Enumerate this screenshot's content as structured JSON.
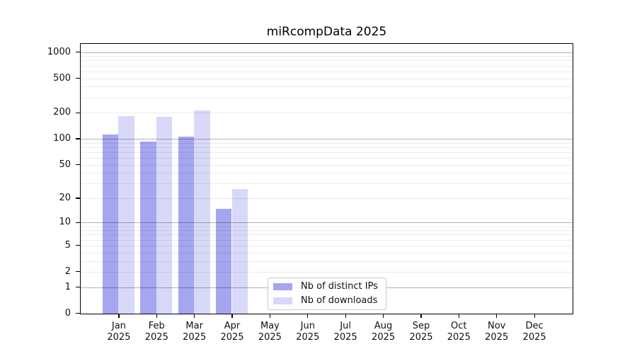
{
  "colors": {
    "series": [
      "#a5a5f0",
      "#d8d8f8"
    ],
    "grid_major": "rgba(0,0,0,0.30)",
    "grid_minor": "rgba(0,0,0,0.08)",
    "axis": "#000000"
  },
  "chart_data": {
    "type": "bar",
    "title": "miRcompData 2025",
    "categories": [
      "Jan 2025",
      "Feb 2025",
      "Mar 2025",
      "Apr 2025",
      "May 2025",
      "Jun 2025",
      "Jul 2025",
      "Aug 2025",
      "Sep 2025",
      "Oct 2025",
      "Nov 2025",
      "Dec 2025"
    ],
    "series": [
      {
        "name": "Nb of distinct IPs",
        "values": [
          113,
          94,
          107,
          15,
          0,
          0,
          0,
          0,
          0,
          0,
          0,
          0
        ]
      },
      {
        "name": "Nb of downloads",
        "values": [
          185,
          180,
          213,
          26,
          0,
          0,
          0,
          0,
          0,
          0,
          0,
          0
        ]
      }
    ],
    "xlabel": "",
    "ylabel": "",
    "yscale": "log1p",
    "yticks": [
      0,
      1,
      2,
      5,
      10,
      20,
      50,
      100,
      200,
      500,
      1000
    ],
    "ylim": [
      0,
      1230
    ],
    "grid": "horizontal",
    "legend_position": "lower center inside plot"
  }
}
